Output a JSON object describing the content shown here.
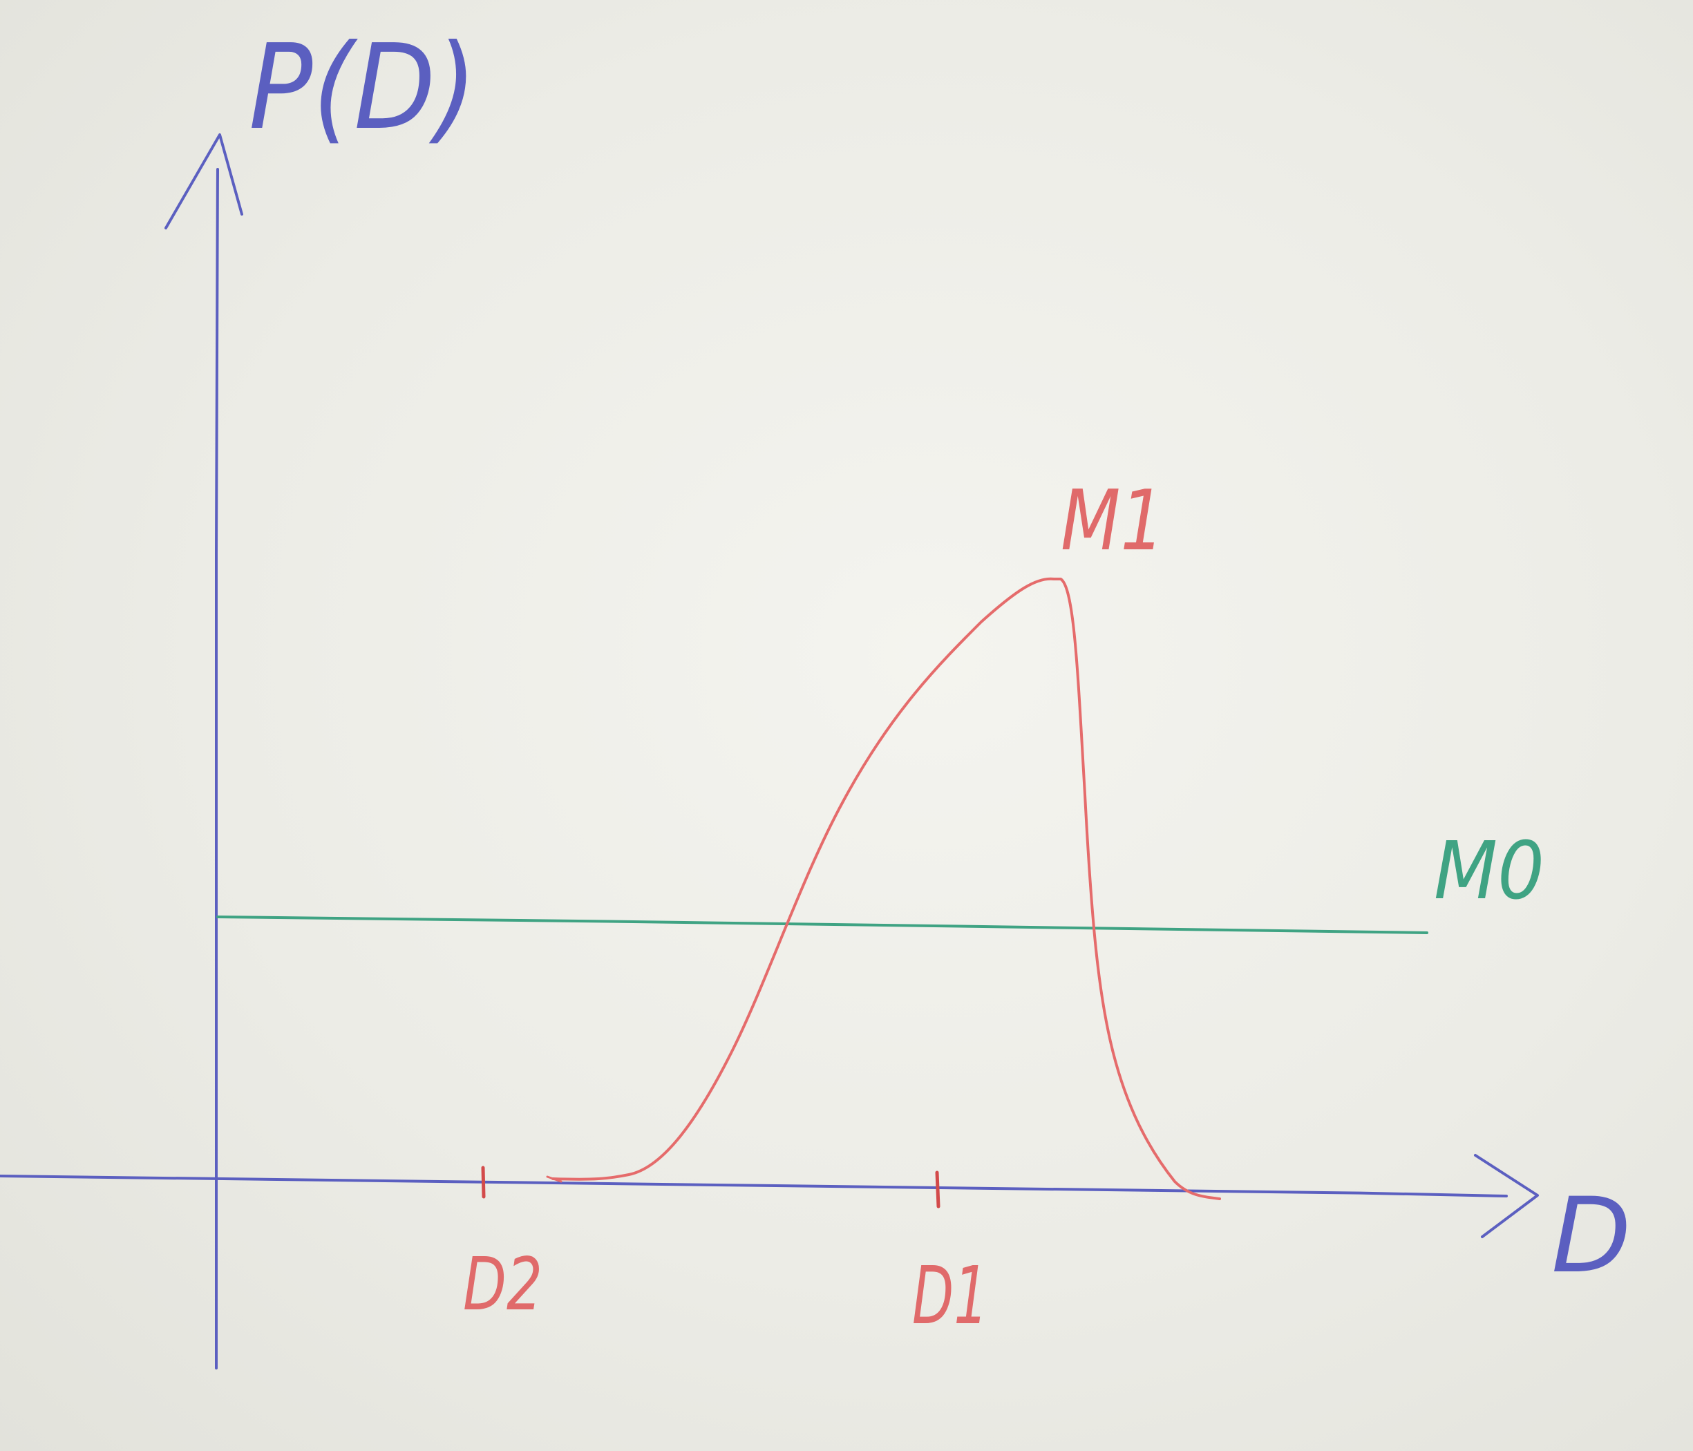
{
  "axes": {
    "y_label": "P(D)",
    "x_label": "D"
  },
  "curves": {
    "m1": {
      "label": "M1",
      "color": "#e56b6b"
    },
    "m0": {
      "label": "M0",
      "color": "#3fa383"
    }
  },
  "ticks": [
    {
      "label": "D2"
    },
    {
      "label": "D1"
    }
  ],
  "colors": {
    "ink_blue": "#5b5fc0",
    "ink_red": "#e56b6b",
    "ink_green": "#3fa383",
    "board": "#efefea"
  }
}
